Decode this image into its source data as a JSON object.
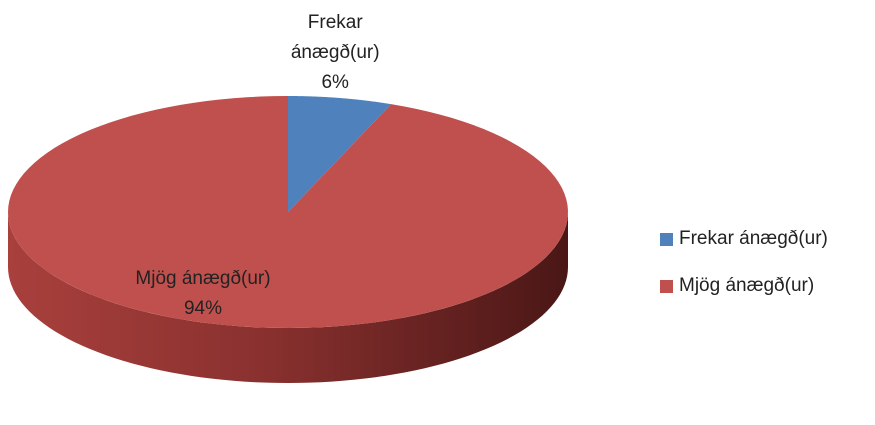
{
  "chart_data": {
    "type": "pie",
    "three_d": true,
    "categories": [
      "Frekar ánægð(ur)",
      "Mjög ánægð(ur)"
    ],
    "values": [
      6,
      94
    ],
    "value_labels": [
      "6%",
      "94%"
    ],
    "colors": [
      "#4f81bd",
      "#c0504d"
    ],
    "legend": "right"
  }
}
